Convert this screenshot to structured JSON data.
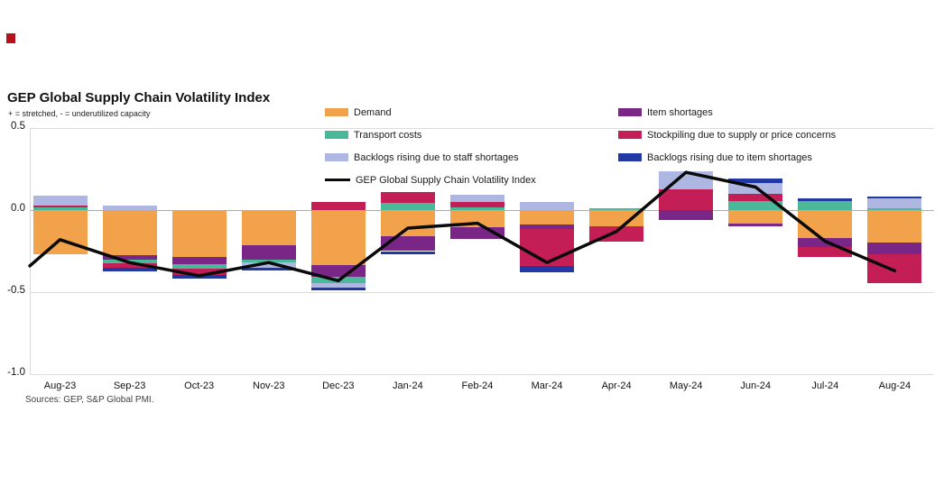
{
  "header": {
    "title": "GEP Global Supply Chain Volatility Index",
    "subtitle": "+ = stretched, - = underutilized capacity"
  },
  "footer": {
    "sources": "Sources: GEP, S&P Global PMI."
  },
  "chart_data": {
    "type": "bar",
    "stacked": true,
    "overlay": "line",
    "title": "GEP Global Supply Chain Volatility Index",
    "subtitle": "+ = stretched, - = underutilized capacity",
    "grid": "horizontal",
    "legend_position": "top-inside-two-columns",
    "ylim": [
      -1.0,
      0.5
    ],
    "yticks": [
      "0.5",
      "0.0",
      "-0.5",
      "-1.0"
    ],
    "categories": [
      "Aug-23",
      "Sep-23",
      "Oct-23",
      "Nov-23",
      "Dec-23",
      "Jan-24",
      "Feb-24",
      "Mar-24",
      "Apr-24",
      "May-24",
      "Jun-24",
      "Jul-24",
      "Aug-24"
    ],
    "series": [
      {
        "name": "Demand",
        "color": "#f2a24b",
        "column": "left",
        "values": [
          -0.27,
          -0.275,
          -0.285,
          -0.215,
          -0.335,
          -0.16,
          -0.105,
          -0.09,
          -0.1,
          0,
          -0.08,
          -0.17,
          -0.2
        ]
      },
      {
        "name": "Item shortages",
        "color": "#7a2686",
        "column": "right",
        "values": [
          0,
          -0.025,
          -0.045,
          -0.085,
          -0.07,
          -0.09,
          -0.07,
          -0.025,
          0,
          -0.06,
          -0.02,
          -0.055,
          -0.07
        ]
      },
      {
        "name": "Transport costs",
        "color": "#4cb89a",
        "column": "left",
        "values": [
          0.015,
          -0.025,
          -0.025,
          -0.02,
          -0.04,
          0.045,
          0.017,
          0,
          0.01,
          0,
          0.055,
          0.055,
          0.01
        ]
      },
      {
        "name": "Stockpiling due to supply or price concerns",
        "color": "#c41e57",
        "column": "right",
        "values": [
          0.015,
          -0.025,
          -0.04,
          0,
          0.05,
          0.065,
          0.033,
          -0.225,
          -0.09,
          0.125,
          0.045,
          -0.06,
          -0.175
        ]
      },
      {
        "name": "Backlogs rising due to staff shortages",
        "color": "#aeb7e2",
        "column": "left",
        "values": [
          0.06,
          0.03,
          0,
          -0.03,
          -0.025,
          0,
          0.045,
          0.05,
          0,
          0.11,
          0.065,
          0,
          0.06
        ]
      },
      {
        "name": "Backlogs rising due to item shortages",
        "color": "#2239a4",
        "column": "right",
        "values": [
          0,
          -0.025,
          -0.025,
          -0.02,
          -0.02,
          -0.02,
          0,
          -0.04,
          0,
          0,
          0.03,
          0.015,
          0.01
        ]
      }
    ],
    "line_series": {
      "name": "GEP Global Supply Chain Volatility Index",
      "color": "#0a0a0a",
      "lead_in_value": -0.34,
      "values": [
        -0.18,
        -0.32,
        -0.4,
        -0.32,
        -0.43,
        -0.11,
        -0.08,
        -0.32,
        -0.13,
        0.23,
        0.14,
        -0.19,
        -0.37
      ]
    }
  }
}
